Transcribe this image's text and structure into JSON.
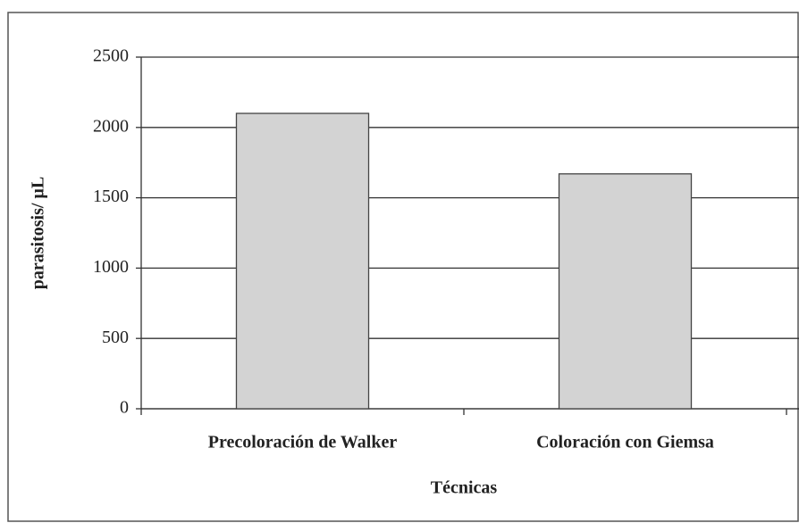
{
  "chart_data": {
    "type": "bar",
    "x_label": "Técnicas",
    "y_label": "parasitosis/ µL",
    "categories": [
      "Precoloración de Walker",
      "Coloración con Giemsa"
    ],
    "values": [
      2100,
      1670
    ],
    "color": "#d3d3d3",
    "ylim": [
      0,
      2500
    ],
    "yticks": [
      0,
      500,
      1000,
      1500,
      2000,
      2500
    ],
    "grid": true
  }
}
